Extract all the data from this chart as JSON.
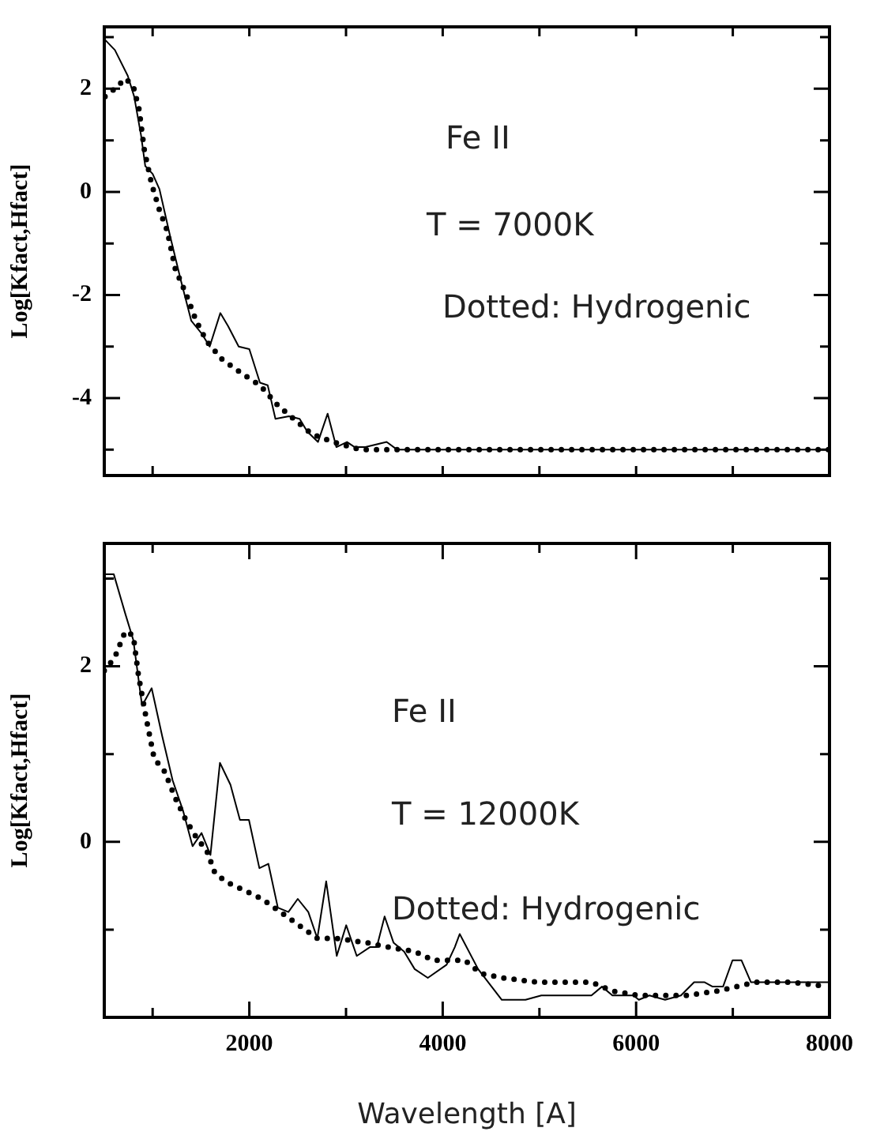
{
  "chart_data": [
    {
      "type": "line",
      "ylabel": "Log[Kfact,Hfact]",
      "xlim": [
        500,
        8000
      ],
      "ylim": [
        -5.5,
        3.2
      ],
      "tick_labels": "y",
      "marker": "none",
      "xticks": [
        {
          "value": 1000,
          "label": null
        },
        {
          "value": 2000,
          "label": null
        },
        {
          "value": 3000,
          "label": null
        },
        {
          "value": 4000,
          "label": null
        },
        {
          "value": 5000,
          "label": null
        },
        {
          "value": 6000,
          "label": null
        },
        {
          "value": 7000,
          "label": null
        }
      ],
      "yticks": [
        {
          "value": -5,
          "label": null
        },
        -4,
        {
          "value": -3,
          "label": null
        },
        -2,
        {
          "value": -1,
          "label": null
        },
        0,
        {
          "value": 1,
          "label": null
        },
        2,
        {
          "value": 3,
          "label": null
        }
      ],
      "annotations": [
        "Fe II",
        "T = 7000K",
        "Dotted: Hydrogenic"
      ],
      "series": [
        {
          "color": "#000000",
          "line_style": "solid",
          "x": [
            508,
            610,
            743,
            809,
            880,
            924,
            1000,
            1071,
            1180,
            1290,
            1400,
            1508,
            1590,
            1700,
            1780,
            1890,
            2000,
            2110,
            2190,
            2270,
            2410,
            2520,
            2600,
            2710,
            2810,
            2900,
            3010,
            3090,
            3200,
            3420,
            3530,
            8000
          ],
          "values": [
            2.95,
            2.75,
            2.25,
            1.85,
            1.1,
            0.5,
            0.35,
            0.05,
            -0.85,
            -1.7,
            -2.5,
            -2.75,
            -3.0,
            -2.35,
            -2.6,
            -3.0,
            -3.05,
            -3.7,
            -3.75,
            -4.4,
            -4.35,
            -4.4,
            -4.65,
            -4.85,
            -4.3,
            -4.95,
            -4.85,
            -4.95,
            -4.95,
            -4.85,
            -5.0,
            -5.0
          ]
        },
        {
          "color": "#000000",
          "line_style": "dotted",
          "x": [
            508,
            610,
            720,
            800,
            860,
            915,
            990,
            1070,
            1150,
            1235,
            1340,
            1450,
            1560,
            1720,
            1945,
            2110,
            2300,
            2490,
            2650,
            2870,
            3150,
            8000
          ],
          "values": [
            1.85,
            2.0,
            2.2,
            2.05,
            1.6,
            0.8,
            0.15,
            -0.35,
            -0.75,
            -1.5,
            -1.95,
            -2.5,
            -2.9,
            -3.25,
            -3.55,
            -3.75,
            -4.15,
            -4.45,
            -4.7,
            -4.85,
            -5.0,
            -5.0
          ]
        }
      ]
    },
    {
      "type": "line",
      "xlabel": "Wavelength [A]",
      "ylabel": "Log[Kfact,Hfact]",
      "xlim": [
        500,
        8000
      ],
      "ylim": [
        -2,
        3.4
      ],
      "marker": "none",
      "xticks": [
        {
          "value": 1000,
          "label": null
        },
        2000,
        {
          "value": 3000,
          "label": null
        },
        4000,
        {
          "value": 5000,
          "label": null
        },
        6000,
        {
          "value": 7000,
          "label": null
        },
        8000
      ],
      "yticks": [
        {
          "value": -1,
          "label": null
        },
        0,
        {
          "value": 1,
          "label": null
        },
        2,
        {
          "value": 3,
          "label": null
        }
      ],
      "annotations": [
        "Fe II",
        "T = 12000K",
        "Dotted: Hydrogenic"
      ],
      "series": [
        {
          "color": "#000000",
          "line_style": "solid",
          "x": [
            500,
            598,
            717,
            800,
            891,
            990,
            1100,
            1207,
            1316,
            1413,
            1506,
            1598,
            1696,
            1805,
            1903,
            1996,
            2104,
            2197,
            2295,
            2404,
            2501,
            2610,
            2703,
            2795,
            2904,
            3002,
            3111,
            3247,
            3318,
            3399,
            3492,
            3601,
            3710,
            3846,
            4040,
            4125,
            4176,
            4366,
            4611,
            4856,
            5020,
            5097,
            5211,
            5538,
            5647,
            5755,
            5973,
            6028,
            6137,
            6300,
            6464,
            6600,
            6709,
            6791,
            6899,
            6997,
            7090,
            7188,
            7281,
            7608,
            7989
          ],
          "values": [
            3.05,
            3.05,
            2.6,
            2.3,
            1.55,
            1.75,
            1.2,
            0.7,
            0.35,
            -0.05,
            0.1,
            -0.15,
            0.9,
            0.65,
            0.25,
            0.25,
            -0.3,
            -0.25,
            -0.75,
            -0.8,
            -0.65,
            -0.8,
            -1.1,
            -0.45,
            -1.3,
            -0.95,
            -1.3,
            -1.2,
            -1.2,
            -0.85,
            -1.15,
            -1.25,
            -1.45,
            -1.55,
            -1.4,
            -1.2,
            -1.05,
            -1.45,
            -1.8,
            -1.8,
            -1.75,
            -1.75,
            -1.75,
            -1.75,
            -1.65,
            -1.75,
            -1.75,
            -1.8,
            -1.75,
            -1.8,
            -1.75,
            -1.6,
            -1.6,
            -1.65,
            -1.65,
            -1.35,
            -1.35,
            -1.6,
            -1.6,
            -1.6,
            -1.6
          ]
        },
        {
          "color": "#000000",
          "line_style": "dotted",
          "x": [
            500,
            608,
            717,
            800,
            853,
            935,
            1016,
            1125,
            1234,
            1343,
            1452,
            1560,
            1642,
            1751,
            1941,
            2132,
            2322,
            2513,
            2703,
            2893,
            3220,
            3437,
            3710,
            3903,
            4230,
            4394,
            4611,
            4993,
            5538,
            5755,
            6028,
            6518,
            6845,
            7226,
            7608,
            7989
          ],
          "values": [
            1.95,
            2.1,
            2.4,
            2.35,
            1.9,
            1.4,
            0.95,
            0.8,
            0.5,
            0.25,
            0.05,
            -0.1,
            -0.35,
            -0.45,
            -0.55,
            -0.65,
            -0.8,
            -0.95,
            -1.1,
            -1.1,
            -1.15,
            -1.2,
            -1.25,
            -1.35,
            -1.35,
            -1.5,
            -1.55,
            -1.6,
            -1.6,
            -1.7,
            -1.75,
            -1.75,
            -1.7,
            -1.6,
            -1.6,
            -1.65
          ]
        }
      ]
    }
  ]
}
